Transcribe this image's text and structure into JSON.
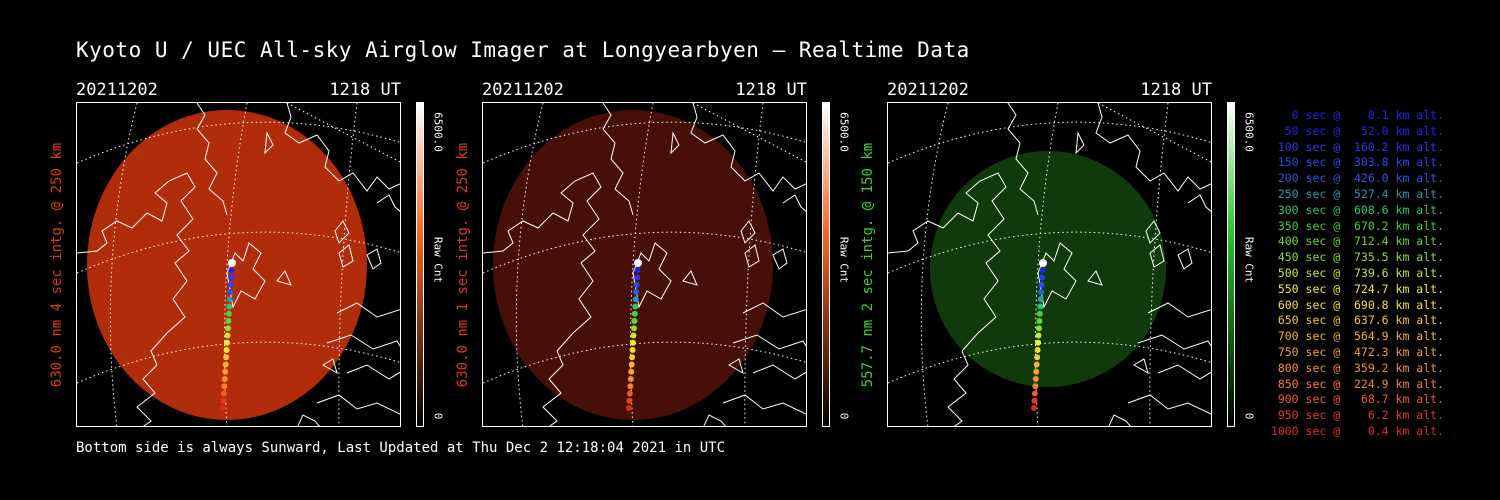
{
  "title": "Kyoto U / UEC All-sky Airglow Imager at Longyearbyen — Realtime Data",
  "footer": "Bottom side is always Sunward, Last Updated at Thu Dec  2 12:18:04 2021 in UTC",
  "panels": [
    {
      "date": "20211202",
      "time": "1218 UT",
      "label": "630.0 nm 4 sec intg. @ 250 km",
      "label_color": "#e03a14",
      "cbar_max": "6500.0",
      "cbar_unit": "Raw Cnt",
      "cbar_min": "0",
      "cbar_color": "#ff6420",
      "glow": "#b92e0c",
      "glow_opacity": 0.95
    },
    {
      "date": "20211202",
      "time": "1218 UT",
      "label": "630.0 nm 1 sec intg. @ 250 km",
      "label_color": "#e03a14",
      "cbar_max": "6500.0",
      "cbar_unit": "Raw Cnt",
      "cbar_min": "0",
      "cbar_color": "#ff6420",
      "glow": "#4a1008",
      "glow_opacity": 0.95
    },
    {
      "date": "20211202",
      "time": "1218 UT",
      "label": "557.7 nm 2 sec intg. @ 150 km",
      "label_color": "#3ad42a",
      "cbar_max": "6500.0",
      "cbar_unit": "Raw Cnt",
      "cbar_min": "0",
      "cbar_color": "#28c828",
      "glow": "#123d0d",
      "glow_opacity": 0.95
    }
  ],
  "legend": [
    {
      "text": "   0 sec @    0.1 km alt.",
      "color": "#2222ee"
    },
    {
      "text": "  50 sec @   52.0 km alt.",
      "color": "#2222ee"
    },
    {
      "text": " 100 sec @  160.2 km alt.",
      "color": "#2a3af2"
    },
    {
      "text": " 150 sec @  303.8 km alt.",
      "color": "#2a4af2"
    },
    {
      "text": " 200 sec @  426.0 km alt.",
      "color": "#2a5ae0"
    },
    {
      "text": " 250 sec @  527.4 km alt.",
      "color": "#2a9ab0"
    },
    {
      "text": " 300 sec @  608.6 km alt.",
      "color": "#2ac86a"
    },
    {
      "text": " 350 sec @  670.2 km alt.",
      "color": "#40d040"
    },
    {
      "text": " 400 sec @  712.4 km alt.",
      "color": "#60d830"
    },
    {
      "text": " 450 sec @  735.5 km alt.",
      "color": "#90e030"
    },
    {
      "text": " 500 sec @  739.6 km alt.",
      "color": "#c0e830"
    },
    {
      "text": " 550 sec @  724.7 km alt.",
      "color": "#f0f030"
    },
    {
      "text": " 600 sec @  690.8 km alt.",
      "color": "#f8e030"
    },
    {
      "text": " 650 sec @  637.6 km alt.",
      "color": "#f8c830"
    },
    {
      "text": " 700 sec @  564.9 km alt.",
      "color": "#f8b030"
    },
    {
      "text": " 750 sec @  472.3 km alt.",
      "color": "#f8a030"
    },
    {
      "text": " 800 sec @  359.2 km alt.",
      "color": "#f89030"
    },
    {
      "text": " 850 sec @  224.9 km alt.",
      "color": "#f88030"
    },
    {
      "text": " 900 sec @   68.7 km alt.",
      "color": "#f05a28"
    },
    {
      "text": " 950 sec @    6.2 km alt.",
      "color": "#e83a20"
    },
    {
      "text": "1000 sec @    0.4 km alt.",
      "color": "#e02a18"
    }
  ]
}
